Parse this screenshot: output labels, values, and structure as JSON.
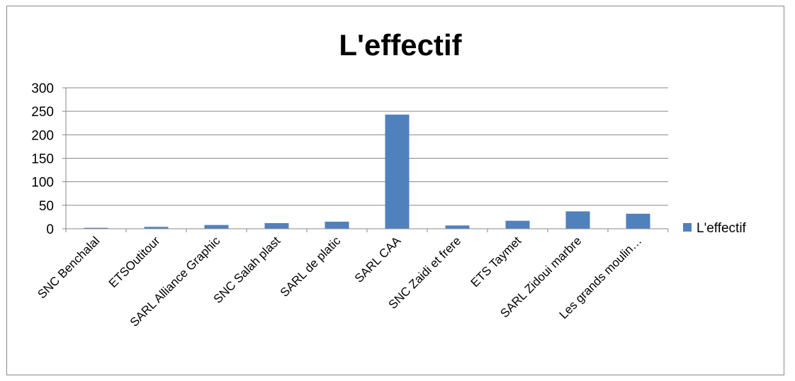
{
  "chart_data": {
    "type": "bar",
    "title": "L'effectif",
    "xlabel": "",
    "ylabel": "",
    "ylim": [
      0,
      300
    ],
    "yticks": [
      "0",
      "50",
      "100",
      "150",
      "200",
      "250",
      "300"
    ],
    "grid": true,
    "legend_position": "right",
    "categories": [
      "SNC Benchalal",
      "ETSOutitour",
      "SARL Alliance Graphic",
      "SNC Salah plast",
      "SARL de platic",
      "SARL CAA",
      "SNC Zaidi et frere",
      "ETS Taymet",
      "SARL Zidoui marbre",
      "Les grands moulin…"
    ],
    "series": [
      {
        "name": "L'effectif",
        "color": "#4f81bd",
        "values": [
          2,
          4,
          8,
          12,
          15,
          243,
          7,
          17,
          37,
          32
        ]
      }
    ]
  }
}
